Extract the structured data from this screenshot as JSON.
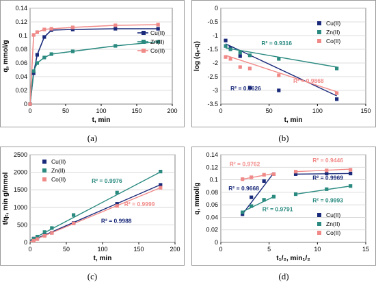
{
  "colors": {
    "cu": "#1a2a7a",
    "zn": "#2a8a80",
    "co": "#f08a88"
  },
  "chart_data": [
    {
      "caption": "(a)",
      "type": "line",
      "xlabel": "t, min",
      "ylabel": "q, mmol/g",
      "xlim": [
        0,
        200
      ],
      "ylim": [
        0,
        0.14
      ],
      "xticks": [
        0,
        50,
        100,
        150,
        200
      ],
      "yticks": [
        0,
        0.02,
        0.04,
        0.06,
        0.08,
        0.1,
        0.12,
        0.14
      ],
      "xtick_labels": [
        "0",
        "50",
        "100",
        "150",
        "200"
      ],
      "ytick_labels": [
        "0",
        "0.02",
        "0.04",
        "0.06",
        "0.08",
        "0.1",
        "0.12",
        "0.14"
      ],
      "grid": "horizontal",
      "legend": "right",
      "series": [
        {
          "name": "Cu(II)",
          "key": "cu",
          "marker": "square",
          "x": [
            0,
            5,
            10,
            20,
            30,
            60,
            120,
            180
          ],
          "y": [
            0,
            0.045,
            0.072,
            0.098,
            0.108,
            0.109,
            0.11,
            0.11
          ]
        },
        {
          "name": "Zn(II)",
          "key": "zn",
          "marker": "square",
          "x": [
            0,
            5,
            10,
            20,
            30,
            60,
            120,
            180
          ],
          "y": [
            0,
            0.048,
            0.06,
            0.068,
            0.073,
            0.077,
            0.085,
            0.091
          ]
        },
        {
          "name": "Co(II)",
          "key": "co",
          "marker": "square",
          "x": [
            0,
            5,
            10,
            20,
            30,
            60,
            120,
            180
          ],
          "y": [
            0,
            0.101,
            0.105,
            0.109,
            0.11,
            0.112,
            0.115,
            0.116
          ]
        }
      ]
    },
    {
      "caption": "(b)",
      "type": "scatter",
      "xlabel": "t, min",
      "ylabel": "log (qₑ-q)",
      "xlim": [
        0,
        150
      ],
      "ylim": [
        -3.5,
        0
      ],
      "xticks": [
        0,
        50,
        100,
        150
      ],
      "yticks": [
        0,
        -0.5,
        -1,
        -1.5,
        -2,
        -2.5,
        -3,
        -3.5
      ],
      "xtick_labels": [
        "0",
        "50",
        "100",
        "150"
      ],
      "ytick_labels": [
        "0",
        "-0.5",
        "-1",
        "-1.5",
        "-2",
        "-2.5",
        "-3",
        "-3.5"
      ],
      "grid": "horizontal",
      "legend": "top-right",
      "series": [
        {
          "name": "Cu(II)",
          "key": "cu",
          "marker": "square",
          "x": [
            5,
            10,
            20,
            30,
            60,
            120
          ],
          "y": [
            -1.18,
            -1.45,
            -1.75,
            -2.9,
            -3.0,
            -3.32
          ],
          "trend": [
            [
              5,
              -1.3
            ],
            [
              120,
              -3.2
            ]
          ]
        },
        {
          "name": "Zn(II)",
          "key": "zn",
          "marker": "square",
          "x": [
            5,
            10,
            20,
            30,
            60,
            120
          ],
          "y": [
            -1.38,
            -1.5,
            -1.62,
            -1.72,
            -1.85,
            -2.2
          ],
          "trend": [
            [
              5,
              -1.45
            ],
            [
              120,
              -2.15
            ]
          ]
        },
        {
          "name": "Co(II)",
          "key": "co",
          "marker": "square",
          "x": [
            5,
            10,
            20,
            30,
            60,
            120
          ],
          "y": [
            -1.78,
            -1.85,
            -2.15,
            -2.2,
            -2.45,
            -3.1
          ],
          "trend": [
            [
              5,
              -1.72
            ],
            [
              120,
              -3.05
            ]
          ]
        }
      ],
      "annotations": [
        {
          "text": "R² = 0.9316",
          "key": "zn",
          "x": 42,
          "y": -1.35
        },
        {
          "text": "R² = 0.9868",
          "key": "co",
          "x": 75,
          "y": -2.72
        },
        {
          "text": "R² = 0.9626",
          "key": "cu",
          "x": 10,
          "y": -3.0
        }
      ]
    },
    {
      "caption": "(c)",
      "type": "scatter",
      "xlabel": "t, min",
      "ylabel": "t/qₜ, min g/mmol",
      "xlim": [
        0,
        200
      ],
      "ylim": [
        0,
        2500
      ],
      "xticks": [
        0,
        50,
        100,
        150,
        200
      ],
      "yticks": [
        0,
        500,
        1000,
        1500,
        2000,
        2500
      ],
      "xtick_labels": [
        "0",
        "50",
        "100",
        "150",
        "200"
      ],
      "ytick_labels": [
        "0",
        "500",
        "1000",
        "1500",
        "2000",
        "2500"
      ],
      "grid": "horizontal",
      "legend": "top-left",
      "series": [
        {
          "name": "Cu(II)",
          "key": "cu",
          "marker": "square",
          "x": [
            5,
            10,
            20,
            30,
            60,
            120,
            180
          ],
          "y": [
            110,
            140,
            205,
            275,
            550,
            1100,
            1640
          ],
          "trend": [
            [
              0,
              30
            ],
            [
              180,
              1645
            ]
          ]
        },
        {
          "name": "Zn(II)",
          "key": "zn",
          "marker": "square",
          "x": [
            5,
            10,
            20,
            30,
            60,
            120,
            180
          ],
          "y": [
            105,
            165,
            295,
            410,
            780,
            1420,
            2020
          ],
          "trend": [
            [
              0,
              60
            ],
            [
              180,
              2010
            ]
          ]
        },
        {
          "name": "Co(II)",
          "key": "co",
          "marker": "square",
          "x": [
            5,
            10,
            20,
            30,
            60,
            120,
            180
          ],
          "y": [
            50,
            95,
            185,
            270,
            540,
            1040,
            1560
          ],
          "trend": [
            [
              0,
              20
            ],
            [
              180,
              1560
            ]
          ]
        }
      ],
      "annotations": [
        {
          "text": "R² = 0.9976",
          "key": "zn",
          "x": 85,
          "y": 1700
        },
        {
          "text": "R² = 0.9999",
          "key": "co",
          "x": 130,
          "y": 1040
        },
        {
          "text": "R² = 0.9988",
          "key": "cu",
          "x": 98,
          "y": 560
        }
      ]
    },
    {
      "caption": "(d)",
      "type": "scatter",
      "xlabel": "t₁/₂, min₁/₂",
      "ylabel": "q, mmol/g",
      "xlim": [
        0,
        15
      ],
      "ylim": [
        0,
        0.14
      ],
      "xticks": [
        0,
        5,
        10,
        15
      ],
      "yticks": [
        0,
        0.02,
        0.04,
        0.06,
        0.08,
        0.1,
        0.12,
        0.14
      ],
      "xtick_labels": [
        "0",
        "5",
        "10",
        "15"
      ],
      "ytick_labels": [
        "0",
        "0.02",
        "0.04",
        "0.06",
        "0.08",
        "0.1",
        "0.12",
        "0.14"
      ],
      "grid": "horizontal",
      "legend": "bottom-right",
      "series": [
        {
          "name": "Cu(II)",
          "key": "cu",
          "marker": "square",
          "x": [
            2.24,
            3.16,
            4.47,
            5.48,
            7.75,
            10.95,
            13.42
          ],
          "y": [
            0.045,
            0.072,
            0.098,
            0.109,
            0.109,
            0.11,
            0.11
          ],
          "trend_segments": [
            [
              [
                2.24,
                0.045
              ],
              [
                5.48,
                0.111
              ]
            ],
            [
              [
                7.75,
                0.109
              ],
              [
                13.42,
                0.11
              ]
            ]
          ]
        },
        {
          "name": "Zn(II)",
          "key": "zn",
          "marker": "square",
          "x": [
            2.24,
            3.16,
            4.47,
            5.48,
            7.75,
            10.95,
            13.42
          ],
          "y": [
            0.048,
            0.058,
            0.068,
            0.073,
            0.077,
            0.085,
            0.09
          ],
          "trend_segments": [
            [
              [
                2.24,
                0.049
              ],
              [
                5.48,
                0.073
              ]
            ],
            [
              [
                7.75,
                0.077
              ],
              [
                13.42,
                0.09
              ]
            ]
          ]
        },
        {
          "name": "Co(II)",
          "key": "co",
          "marker": "square",
          "x": [
            2.24,
            3.16,
            4.47,
            5.48,
            7.75,
            10.95,
            13.42
          ],
          "y": [
            0.101,
            0.104,
            0.108,
            0.109,
            0.113,
            0.115,
            0.116
          ],
          "trend_segments": [
            [
              [
                2.24,
                0.101
              ],
              [
                5.48,
                0.11
              ]
            ],
            [
              [
                7.75,
                0.113
              ],
              [
                13.42,
                0.117
              ]
            ]
          ]
        }
      ],
      "annotations": [
        {
          "text": "R² = 0.9762",
          "key": "co",
          "x": 0.9,
          "y": 0.122
        },
        {
          "text": "R² = 0.9446",
          "key": "co",
          "x": 9.5,
          "y": 0.128
        },
        {
          "text": "R² = 0.9969",
          "key": "cu",
          "x": 9.5,
          "y": 0.1
        },
        {
          "text": "R² = 0.9668",
          "key": "cu",
          "x": 0.8,
          "y": 0.083
        },
        {
          "text": "R² = 0.9791",
          "key": "zn",
          "x": 4.3,
          "y": 0.05
        },
        {
          "text": "R² = 0.9993",
          "key": "zn",
          "x": 9.5,
          "y": 0.064
        }
      ]
    }
  ]
}
